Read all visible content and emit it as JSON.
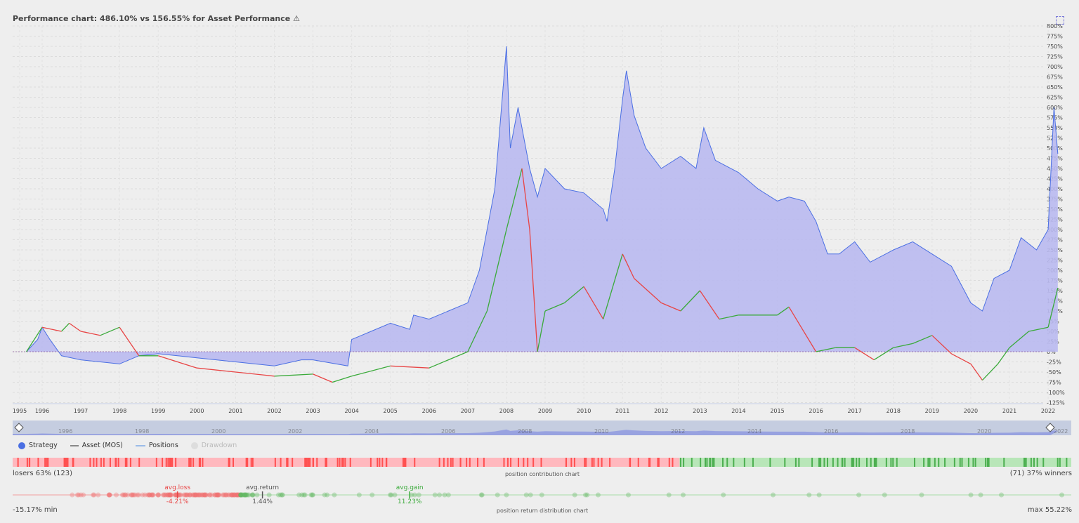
{
  "title": "Performance chart: 486.10% vs 156.55% for Asset Performance ⚠",
  "legend": {
    "strategy": "Strategy",
    "asset": "Asset (MOS)",
    "positions": "Positions",
    "drawdown": "Drawdown"
  },
  "colors": {
    "strategy": "#4a6fe3",
    "strategy_fill": "#b9b9f0",
    "asset_up": "#3aaa3a",
    "asset_down": "#e84545",
    "asset": "#777777",
    "losers": "#ffb8be",
    "winners": "#b8e6b8"
  },
  "navigator": {
    "labels": [
      "1996",
      "1998",
      "2000",
      "2002",
      "2004",
      "2006",
      "2008",
      "2010",
      "2012",
      "2014",
      "2016",
      "2018",
      "2020",
      "2022"
    ]
  },
  "contribution": {
    "losers": "losers 63% (123)",
    "winners": "(71) 37% winners",
    "caption": "position contribution chart",
    "loser_share": 0.63
  },
  "distribution": {
    "min_label": "-15.17% min",
    "max_label": "max 55.22%",
    "caption": "position return distribution chart",
    "min": -15.17,
    "max": 55.22,
    "avg_loss_label": "avg.loss",
    "avg_loss": -4.21,
    "avg_loss_value": "-4.21%",
    "avg_return_label": "avg.return",
    "avg_return": 1.44,
    "avg_return_value": "1.44%",
    "avg_gain_label": "avg.gain",
    "avg_gain": 11.23,
    "avg_gain_value": "11.23%"
  },
  "chart_data": {
    "type": "area",
    "title": "Performance chart: 486.10% vs 156.55% for Asset Performance",
    "ylim": [
      -125,
      800
    ],
    "y_ticks": [
      -125,
      -100,
      -75,
      -50,
      -25,
      0,
      25,
      50,
      75,
      100,
      125,
      150,
      175,
      200,
      225,
      250,
      275,
      300,
      325,
      350,
      375,
      400,
      425,
      450,
      475,
      500,
      525,
      550,
      575,
      600,
      625,
      650,
      675,
      700,
      725,
      750,
      775,
      800
    ],
    "x_ticks": [
      1995,
      1996,
      1997,
      1998,
      1999,
      2000,
      2001,
      2002,
      2003,
      2004,
      2005,
      2006,
      2007,
      2008,
      2009,
      2010,
      2011,
      2012,
      2013,
      2014,
      2015,
      2016,
      2017,
      2018,
      2019,
      2020,
      2021,
      2022
    ],
    "grid": true,
    "series": [
      {
        "name": "Strategy",
        "points": [
          [
            1995.3,
            0
          ],
          [
            1995.8,
            30
          ],
          [
            1996.0,
            60
          ],
          [
            1996.2,
            30
          ],
          [
            1996.5,
            -10
          ],
          [
            1997,
            -20
          ],
          [
            1998,
            -30
          ],
          [
            1998.5,
            -10
          ],
          [
            1999,
            -5
          ],
          [
            2000,
            -15
          ],
          [
            2001,
            -25
          ],
          [
            2002,
            -35
          ],
          [
            2002.7,
            -20
          ],
          [
            2003,
            -20
          ],
          [
            2003.9,
            -35
          ],
          [
            2004,
            30
          ],
          [
            2004.5,
            50
          ],
          [
            2005,
            70
          ],
          [
            2005.5,
            55
          ],
          [
            2005.6,
            90
          ],
          [
            2006,
            80
          ],
          [
            2006.5,
            100
          ],
          [
            2007,
            120
          ],
          [
            2007.3,
            200
          ],
          [
            2007.7,
            400
          ],
          [
            2008,
            750
          ],
          [
            2008.1,
            500
          ],
          [
            2008.3,
            600
          ],
          [
            2008.6,
            450
          ],
          [
            2008.8,
            380
          ],
          [
            2009,
            450
          ],
          [
            2009.5,
            400
          ],
          [
            2010,
            390
          ],
          [
            2010.5,
            350
          ],
          [
            2010.6,
            320
          ],
          [
            2010.8,
            450
          ],
          [
            2011,
            620
          ],
          [
            2011.1,
            690
          ],
          [
            2011.3,
            580
          ],
          [
            2011.6,
            500
          ],
          [
            2012,
            450
          ],
          [
            2012.5,
            480
          ],
          [
            2012.9,
            450
          ],
          [
            2013.1,
            550
          ],
          [
            2013.4,
            470
          ],
          [
            2014,
            440
          ],
          [
            2014.5,
            400
          ],
          [
            2015,
            370
          ],
          [
            2015.3,
            380
          ],
          [
            2015.7,
            370
          ],
          [
            2016,
            320
          ],
          [
            2016.3,
            240
          ],
          [
            2016.6,
            240
          ],
          [
            2017,
            270
          ],
          [
            2017.4,
            220
          ],
          [
            2018,
            250
          ],
          [
            2018.5,
            270
          ],
          [
            2019,
            240
          ],
          [
            2019.5,
            210
          ],
          [
            2020,
            120
          ],
          [
            2020.3,
            100
          ],
          [
            2020.6,
            180
          ],
          [
            2021,
            200
          ],
          [
            2021.3,
            280
          ],
          [
            2021.7,
            250
          ],
          [
            2022,
            300
          ],
          [
            2022.15,
            600
          ],
          [
            2022.25,
            486
          ]
        ]
      },
      {
        "name": "Asset (MOS)",
        "points": [
          [
            1995.3,
            0
          ],
          [
            1996,
            60
          ],
          [
            1996.5,
            50
          ],
          [
            1996.7,
            70
          ],
          [
            1997,
            50
          ],
          [
            1997.5,
            40
          ],
          [
            1998,
            60
          ],
          [
            1998.5,
            -10
          ],
          [
            1999,
            -10
          ],
          [
            2000,
            -40
          ],
          [
            2001,
            -50
          ],
          [
            2002,
            -60
          ],
          [
            2003,
            -55
          ],
          [
            2003.5,
            -75
          ],
          [
            2004,
            -60
          ],
          [
            2005,
            -35
          ],
          [
            2006,
            -40
          ],
          [
            2007,
            0
          ],
          [
            2007.5,
            100
          ],
          [
            2008,
            300
          ],
          [
            2008.4,
            450
          ],
          [
            2008.6,
            300
          ],
          [
            2008.8,
            0
          ],
          [
            2009,
            100
          ],
          [
            2009.5,
            120
          ],
          [
            2010,
            160
          ],
          [
            2010.5,
            80
          ],
          [
            2011,
            240
          ],
          [
            2011.3,
            180
          ],
          [
            2012,
            120
          ],
          [
            2012.5,
            100
          ],
          [
            2013,
            150
          ],
          [
            2013.5,
            80
          ],
          [
            2014,
            90
          ],
          [
            2015,
            90
          ],
          [
            2015.3,
            110
          ],
          [
            2016,
            0
          ],
          [
            2016.5,
            10
          ],
          [
            2017,
            10
          ],
          [
            2017.5,
            -20
          ],
          [
            2018,
            10
          ],
          [
            2018.5,
            20
          ],
          [
            2019,
            40
          ],
          [
            2019.5,
            -5
          ],
          [
            2020,
            -30
          ],
          [
            2020.3,
            -70
          ],
          [
            2020.7,
            -30
          ],
          [
            2021,
            10
          ],
          [
            2021.5,
            50
          ],
          [
            2022,
            60
          ],
          [
            2022.25,
            156.55
          ]
        ]
      }
    ]
  }
}
